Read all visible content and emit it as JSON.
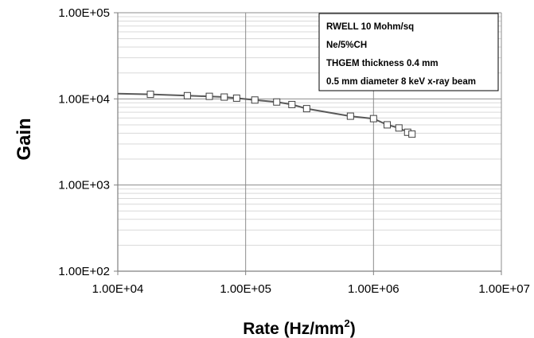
{
  "chart_data": {
    "type": "line",
    "title": "",
    "xlabel": "Rate (Hz/mm²)",
    "xlabel_main": "Rate (Hz/mm",
    "xlabel_sup": "2",
    "xlabel_close": ")",
    "ylabel": "Gain",
    "x_scale": "log",
    "y_scale": "log",
    "xlim": [
      10000,
      10000000
    ],
    "ylim": [
      100,
      100000
    ],
    "x_ticks": [
      10000,
      100000,
      1000000,
      10000000
    ],
    "x_tick_labels": [
      "1.00E+04",
      "1.00E+05",
      "1.00E+06",
      "1.00E+07"
    ],
    "y_ticks": [
      100,
      1000,
      10000,
      100000
    ],
    "y_tick_labels": [
      "1.00E+02",
      "1.00E+03",
      "1.00E+04",
      "1.00E+05"
    ],
    "grid": true,
    "legend_position": "top-right",
    "annotation_lines": [
      "RWELL 10 Mohm/sq",
      "Ne/5%CH",
      "THGEM thickness 0.4 mm",
      "0.5 mm diameter 8 keV x-ray beam"
    ],
    "line_color": "#595959",
    "marker": "open-square",
    "series": [
      {
        "x": [
          10000,
          18000,
          35000,
          52000,
          68000,
          85000,
          118000,
          175000,
          230000,
          300000,
          660000,
          1000000,
          1280000,
          1580000,
          1850000,
          2000000
        ],
        "y": [
          11500,
          11300,
          10900,
          10700,
          10500,
          10200,
          9700,
          9200,
          8600,
          7700,
          6300,
          5900,
          5000,
          4600,
          4100,
          3900
        ],
        "markers": [
          false,
          true,
          true,
          true,
          true,
          true,
          true,
          true,
          true,
          true,
          true,
          true,
          true,
          true,
          true,
          true
        ]
      }
    ]
  }
}
